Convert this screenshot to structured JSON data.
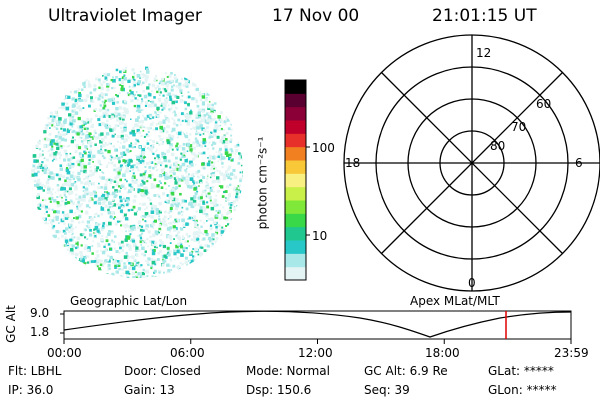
{
  "header": {
    "title": "Ultraviolet Imager",
    "date": "17 Nov 00",
    "time": "21:01:15 UT"
  },
  "colorbar": {
    "unit_label": "photon cm⁻²s⁻¹",
    "ticks": [
      "100",
      "10"
    ],
    "colors": [
      "#000000",
      "#5a0030",
      "#8b0036",
      "#c0002b",
      "#e8302a",
      "#f08020",
      "#f8c838",
      "#f8f080",
      "#c8f048",
      "#80e838",
      "#38d848",
      "#20c890",
      "#28c8c8",
      "#a8e8e8",
      "#e4f4f4"
    ]
  },
  "polar_grid": {
    "mlat_labels": [
      "60",
      "70",
      "80"
    ],
    "mlt_labels": {
      "top": "12",
      "left": "18",
      "right": "6",
      "bottom": "0"
    }
  },
  "timeline": {
    "left_title": "Geographic Lat/Lon",
    "right_title": "Apex MLat/MLT",
    "ylabel": "GC Alt",
    "yticks": [
      "9.0",
      "1.8"
    ],
    "xticks": [
      "00:00",
      "06:00",
      "12:00",
      "18:00",
      "23:59"
    ],
    "marker_time": "21:01",
    "marker_color": "#e00000"
  },
  "footer": {
    "rows": [
      [
        "Flt: LBHL",
        "Door: Closed",
        "Mode: Normal",
        "GC Alt: 6.9 Re",
        "GLat: *****"
      ],
      [
        "IP: 36.0",
        "Gain: 13",
        "Dsp: 150.6",
        "Seq: 39",
        "GLon: *****"
      ]
    ]
  }
}
